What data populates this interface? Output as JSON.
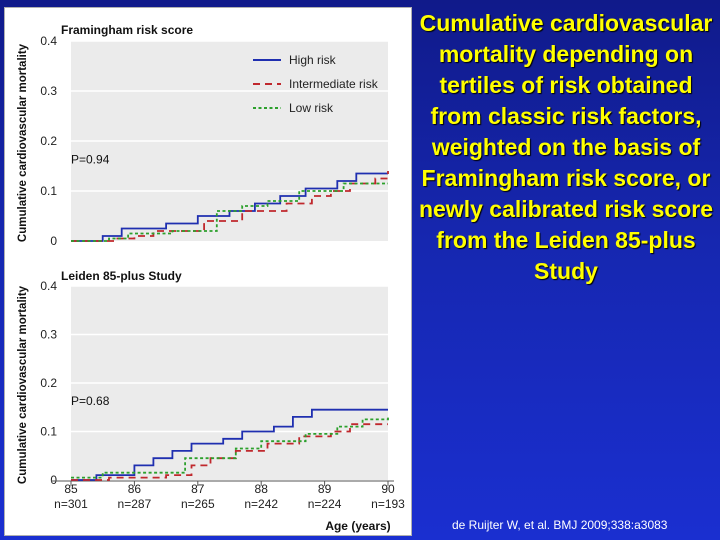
{
  "slide": {
    "title": "Cumulative cardiovascular mortality depending on tertiles of risk obtained from classic risk factors, weighted on the basis of Framingham risk score, or newly calibrated risk score from the Leiden 85-plus Study",
    "citation": "de Ruijter W, et al. BMJ 2009;338:a3083",
    "background_color": "#1627b0",
    "title_color": "#ffff00"
  },
  "chart_data": [
    {
      "type": "line",
      "title": "Framingham risk score",
      "ylabel": "Cumulative cardiovascular mortality",
      "ylim": [
        0,
        0.4
      ],
      "yticks": [
        "0",
        "0.1",
        "0.2",
        "0.3",
        "0.4"
      ],
      "xlim": [
        85,
        90
      ],
      "grid": true,
      "legend_position": "top-right",
      "annotation": "P=0.94",
      "series": [
        {
          "name": "High risk",
          "color": "#1f2fb0",
          "dash": "solid",
          "points": [
            [
              85,
              0
            ],
            [
              85.5,
              0
            ],
            [
              85.5,
              0.01
            ],
            [
              85.8,
              0.01
            ],
            [
              85.8,
              0.025
            ],
            [
              86.5,
              0.025
            ],
            [
              86.5,
              0.035
            ],
            [
              87,
              0.035
            ],
            [
              87,
              0.05
            ],
            [
              87.5,
              0.05
            ],
            [
              87.5,
              0.06
            ],
            [
              87.9,
              0.06
            ],
            [
              87.9,
              0.075
            ],
            [
              88.3,
              0.075
            ],
            [
              88.3,
              0.09
            ],
            [
              88.7,
              0.09
            ],
            [
              88.7,
              0.105
            ],
            [
              89.2,
              0.105
            ],
            [
              89.2,
              0.12
            ],
            [
              89.5,
              0.12
            ],
            [
              89.5,
              0.135
            ],
            [
              90,
              0.135
            ]
          ]
        },
        {
          "name": "Intermediate risk",
          "color": "#c0282d",
          "dash": "dashed",
          "points": [
            [
              85,
              0
            ],
            [
              85.7,
              0
            ],
            [
              85.7,
              0.005
            ],
            [
              86,
              0.005
            ],
            [
              86,
              0.01
            ],
            [
              86.3,
              0.01
            ],
            [
              86.3,
              0.02
            ],
            [
              87.1,
              0.02
            ],
            [
              87.1,
              0.04
            ],
            [
              87.7,
              0.04
            ],
            [
              87.7,
              0.06
            ],
            [
              88.4,
              0.06
            ],
            [
              88.4,
              0.075
            ],
            [
              88.8,
              0.075
            ],
            [
              88.8,
              0.09
            ],
            [
              89.1,
              0.09
            ],
            [
              89.1,
              0.1
            ],
            [
              89.4,
              0.1
            ],
            [
              89.4,
              0.115
            ],
            [
              89.8,
              0.115
            ],
            [
              89.8,
              0.125
            ],
            [
              90,
              0.125
            ],
            [
              90,
              0.14
            ]
          ]
        },
        {
          "name": "Low risk",
          "color": "#2ca02c",
          "dash": "dotted",
          "points": [
            [
              85,
              0
            ],
            [
              85.6,
              0
            ],
            [
              85.6,
              0.005
            ],
            [
              85.9,
              0.005
            ],
            [
              85.9,
              0.015
            ],
            [
              86.6,
              0.015
            ],
            [
              86.6,
              0.02
            ],
            [
              87.3,
              0.02
            ],
            [
              87.3,
              0.06
            ],
            [
              87.7,
              0.06
            ],
            [
              87.7,
              0.07
            ],
            [
              88.1,
              0.07
            ],
            [
              88.1,
              0.08
            ],
            [
              88.6,
              0.08
            ],
            [
              88.6,
              0.1
            ],
            [
              89.3,
              0.1
            ],
            [
              89.3,
              0.115
            ],
            [
              90,
              0.115
            ]
          ]
        }
      ]
    },
    {
      "type": "line",
      "title": "Leiden 85-plus Study",
      "ylabel": "Cumulative cardiovascular mortality",
      "xlabel": "Age (years)",
      "ylim": [
        0,
        0.4
      ],
      "yticks": [
        "0",
        "0.1",
        "0.2",
        "0.3",
        "0.4"
      ],
      "xlim": [
        85,
        90
      ],
      "xticks": [
        "85",
        "86",
        "87",
        "88",
        "89",
        "90"
      ],
      "numbers_at_risk": [
        "n=301",
        "n=287",
        "n=265",
        "n=242",
        "n=224",
        "n=193"
      ],
      "grid": true,
      "annotation": "P=0.68",
      "series": [
        {
          "name": "High risk",
          "color": "#1f2fb0",
          "dash": "solid",
          "points": [
            [
              85,
              0
            ],
            [
              85.4,
              0
            ],
            [
              85.4,
              0.01
            ],
            [
              86,
              0.01
            ],
            [
              86,
              0.03
            ],
            [
              86.3,
              0.03
            ],
            [
              86.3,
              0.045
            ],
            [
              86.6,
              0.045
            ],
            [
              86.6,
              0.06
            ],
            [
              86.9,
              0.06
            ],
            [
              86.9,
              0.075
            ],
            [
              87.4,
              0.075
            ],
            [
              87.4,
              0.085
            ],
            [
              87.7,
              0.085
            ],
            [
              87.7,
              0.1
            ],
            [
              88.2,
              0.1
            ],
            [
              88.2,
              0.11
            ],
            [
              88.5,
              0.11
            ],
            [
              88.5,
              0.13
            ],
            [
              88.8,
              0.13
            ],
            [
              88.8,
              0.145
            ],
            [
              90,
              0.145
            ]
          ]
        },
        {
          "name": "Intermediate risk",
          "color": "#c0282d",
          "dash": "dashed",
          "points": [
            [
              85,
              0
            ],
            [
              85.6,
              0
            ],
            [
              85.6,
              0.005
            ],
            [
              86.5,
              0.005
            ],
            [
              86.5,
              0.01
            ],
            [
              86.9,
              0.01
            ],
            [
              86.9,
              0.03
            ],
            [
              87.2,
              0.03
            ],
            [
              87.2,
              0.045
            ],
            [
              87.6,
              0.045
            ],
            [
              87.6,
              0.06
            ],
            [
              88.1,
              0.06
            ],
            [
              88.1,
              0.075
            ],
            [
              88.6,
              0.075
            ],
            [
              88.6,
              0.09
            ],
            [
              89.1,
              0.09
            ],
            [
              89.1,
              0.1
            ],
            [
              89.4,
              0.1
            ],
            [
              89.4,
              0.115
            ],
            [
              90,
              0.115
            ]
          ]
        },
        {
          "name": "Low risk",
          "color": "#2ca02c",
          "dash": "dotted",
          "points": [
            [
              85,
              0.005
            ],
            [
              85.5,
              0.005
            ],
            [
              85.5,
              0.015
            ],
            [
              86.8,
              0.015
            ],
            [
              86.8,
              0.045
            ],
            [
              87.6,
              0.045
            ],
            [
              87.6,
              0.065
            ],
            [
              88,
              0.065
            ],
            [
              88,
              0.08
            ],
            [
              88.7,
              0.08
            ],
            [
              88.7,
              0.095
            ],
            [
              89.2,
              0.095
            ],
            [
              89.2,
              0.11
            ],
            [
              89.6,
              0.11
            ],
            [
              89.6,
              0.125
            ],
            [
              90,
              0.125
            ],
            [
              90,
              0.13
            ]
          ]
        }
      ]
    }
  ]
}
